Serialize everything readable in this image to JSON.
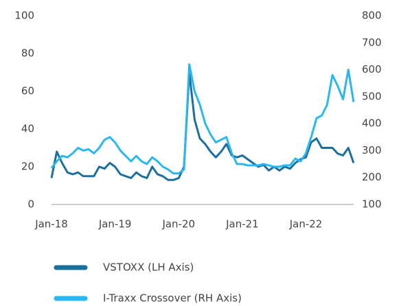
{
  "chart_data": {
    "type": "line",
    "categories": [
      "Jan-18",
      null,
      null,
      null,
      null,
      null,
      null,
      null,
      null,
      null,
      null,
      null,
      "Jan-19",
      null,
      null,
      null,
      null,
      null,
      null,
      null,
      null,
      null,
      null,
      null,
      "Jan-20",
      null,
      null,
      null,
      null,
      null,
      null,
      null,
      null,
      null,
      null,
      null,
      "Jan-21",
      null,
      null,
      null,
      null,
      null,
      null,
      null,
      null,
      null,
      null,
      null,
      "Jan-22",
      null,
      null,
      null,
      null,
      null,
      null,
      null,
      null,
      null
    ],
    "series": [
      {
        "name": "VSTOXX (LH Axis)",
        "color": "#1b6f9c",
        "axis": "y",
        "values": [
          14,
          28,
          22,
          17,
          16,
          17,
          15,
          15,
          15,
          20,
          19,
          22,
          20,
          16,
          15,
          14,
          17,
          15,
          14,
          20,
          16,
          15,
          13,
          13,
          14,
          20,
          70,
          45,
          35,
          32,
          28,
          25,
          28,
          32,
          26,
          25,
          26,
          24,
          22,
          20,
          21,
          18,
          20,
          18,
          20,
          19,
          22,
          24,
          25,
          33,
          35,
          30,
          30,
          30,
          27,
          26,
          30,
          22
        ]
      },
      {
        "name": "I-Traxx Crossover (RH Axis)",
        "color": "#2ab6f0",
        "axis": "y2",
        "values": [
          235,
          260,
          280,
          275,
          290,
          310,
          300,
          305,
          290,
          310,
          340,
          350,
          330,
          300,
          280,
          260,
          280,
          260,
          250,
          275,
          260,
          240,
          230,
          215,
          215,
          230,
          620,
          520,
          470,
          400,
          360,
          330,
          340,
          350,
          290,
          250,
          250,
          245,
          245,
          245,
          250,
          245,
          240,
          240,
          245,
          245,
          270,
          260,
          290,
          350,
          420,
          430,
          470,
          580,
          540,
          490,
          600,
          480
        ]
      }
    ],
    "ylim": [
      0,
      100
    ],
    "yticks": [
      0,
      20,
      40,
      60,
      80,
      100
    ],
    "y2lim": [
      100,
      800
    ],
    "y2ticks": [
      100,
      200,
      300,
      400,
      500,
      600,
      700,
      800
    ]
  }
}
